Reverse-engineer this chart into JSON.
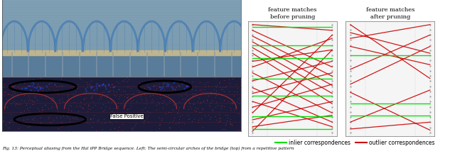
{
  "title_before": "feature matches\nbefore pruning",
  "title_after": "feature matches\nafter pruning",
  "legend_inlier_label": "inlier correspondences",
  "legend_outlier_label": "outlier correspondences",
  "inlier_color": "#00dd00",
  "outlier_color": "#cc0000",
  "caption_text": "Fig. 13: Perceptual aliasing from the Hal iPP Bridge sequence. Left: The semi-circular arches of the bridge (top) from a repetitive pattern",
  "before_outlier_lines": [
    [
      0.05,
      0.97,
      0.95,
      0.92
    ],
    [
      0.05,
      0.92,
      0.95,
      0.6
    ],
    [
      0.05,
      0.87,
      0.95,
      0.52
    ],
    [
      0.05,
      0.82,
      0.95,
      0.44
    ],
    [
      0.05,
      0.77,
      0.95,
      0.37
    ],
    [
      0.05,
      0.72,
      0.95,
      0.28
    ],
    [
      0.05,
      0.65,
      0.95,
      0.75
    ],
    [
      0.05,
      0.6,
      0.95,
      0.85
    ],
    [
      0.05,
      0.55,
      0.95,
      0.2
    ],
    [
      0.05,
      0.48,
      0.95,
      0.65
    ],
    [
      0.05,
      0.42,
      0.95,
      0.12
    ],
    [
      0.05,
      0.37,
      0.95,
      0.55
    ],
    [
      0.05,
      0.3,
      0.95,
      0.08
    ],
    [
      0.05,
      0.25,
      0.95,
      0.45
    ],
    [
      0.05,
      0.2,
      0.95,
      0.88
    ],
    [
      0.05,
      0.14,
      0.95,
      0.3
    ],
    [
      0.05,
      0.08,
      0.95,
      0.18
    ],
    [
      0.05,
      0.04,
      0.95,
      0.75
    ]
  ],
  "before_inlier_lines": [
    [
      0.05,
      0.95,
      0.95,
      0.95
    ],
    [
      0.05,
      0.79,
      0.95,
      0.79
    ],
    [
      0.05,
      0.68,
      0.95,
      0.68
    ],
    [
      0.05,
      0.5,
      0.95,
      0.5
    ],
    [
      0.05,
      0.35,
      0.95,
      0.35
    ],
    [
      0.05,
      0.17,
      0.95,
      0.17
    ],
    [
      0.05,
      0.06,
      0.95,
      0.06
    ]
  ],
  "after_outlier_lines": [
    [
      0.05,
      0.97,
      0.95,
      0.5
    ],
    [
      0.05,
      0.9,
      0.95,
      0.72
    ],
    [
      0.05,
      0.85,
      0.95,
      0.97
    ],
    [
      0.05,
      0.78,
      0.95,
      0.62
    ],
    [
      0.05,
      0.58,
      0.95,
      0.88
    ],
    [
      0.05,
      0.45,
      0.95,
      0.78
    ],
    [
      0.05,
      0.38,
      0.95,
      0.05
    ],
    [
      0.05,
      0.12,
      0.95,
      0.4
    ],
    [
      0.05,
      0.06,
      0.95,
      0.12
    ]
  ],
  "after_inlier_lines": [
    [
      0.05,
      0.7,
      0.95,
      0.7
    ],
    [
      0.05,
      0.28,
      0.95,
      0.28
    ],
    [
      0.05,
      0.18,
      0.95,
      0.18
    ]
  ],
  "bg_color": "#ffffff"
}
